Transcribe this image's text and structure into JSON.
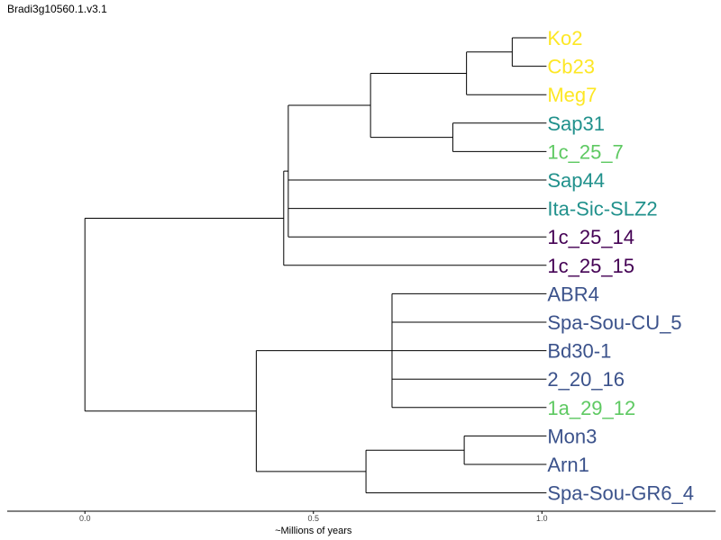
{
  "page": {
    "title": "Bradi3g10560.1.v3.1"
  },
  "chart_data": {
    "type": "dendrogram",
    "title": "Bradi3g10560.1.v3.1",
    "xlabel": "~Millions of years",
    "xlim": [
      -0.17,
      1.38
    ],
    "xticks": [
      0.0,
      0.5,
      1.0
    ],
    "xtick_labels": [
      "0.0",
      "0.5",
      "1.0"
    ],
    "grid": false,
    "colors": {
      "yellow": "#fde725",
      "teal": "#21918c",
      "light_green": "#5ec962",
      "dark_purple": "#440154",
      "slate_blue": "#3b528b"
    },
    "leaves": [
      {
        "name": "Ko2",
        "color": "#fde725"
      },
      {
        "name": "Cb23",
        "color": "#fde725"
      },
      {
        "name": "Meg7",
        "color": "#fde725"
      },
      {
        "name": "Sap31",
        "color": "#21918c"
      },
      {
        "name": "1c_25_7",
        "color": "#5ec962"
      },
      {
        "name": "Sap44",
        "color": "#21918c"
      },
      {
        "name": "Ita-Sic-SLZ2",
        "color": "#21918c"
      },
      {
        "name": "1c_25_14",
        "color": "#440154"
      },
      {
        "name": "1c_25_15",
        "color": "#440154"
      },
      {
        "name": "ABR4",
        "color": "#3b528b"
      },
      {
        "name": "Spa-Sou-CU_5",
        "color": "#3b528b"
      },
      {
        "name": "Bd30-1",
        "color": "#3b528b"
      },
      {
        "name": "2_20_16",
        "color": "#3b528b"
      },
      {
        "name": "1a_29_12",
        "color": "#5ec962"
      },
      {
        "name": "Mon3",
        "color": "#3b528b"
      },
      {
        "name": "Arn1",
        "color": "#3b528b"
      },
      {
        "name": "Spa-Sou-GR6_4",
        "color": "#3b528b"
      }
    ],
    "leaf_x": 1.01,
    "tree": {
      "x": 0.0,
      "children": [
        {
          "x": 0.435,
          "children": [
            {
              "x": 0.445,
              "children": [
                {
                  "x": 0.625,
                  "children": [
                    {
                      "x": 0.835,
                      "children": [
                        {
                          "x": 0.935,
                          "children": [
                            {
                              "leaf": 0
                            },
                            {
                              "leaf": 1
                            }
                          ]
                        },
                        {
                          "leaf": 2
                        }
                      ]
                    },
                    {
                      "x": 0.805,
                      "children": [
                        {
                          "leaf": 3
                        },
                        {
                          "leaf": 4
                        }
                      ]
                    }
                  ]
                },
                {
                  "leaf": 5
                },
                {
                  "leaf": 6
                },
                {
                  "leaf": 7
                }
              ]
            },
            {
              "leaf": 8
            }
          ]
        },
        {
          "x": 0.375,
          "children": [
            {
              "x": 0.672,
              "children": [
                {
                  "leaf": 9
                },
                {
                  "leaf": 10
                },
                {
                  "leaf": 11
                },
                {
                  "leaf": 12
                },
                {
                  "leaf": 13
                }
              ]
            },
            {
              "x": 0.615,
              "children": [
                {
                  "x": 0.83,
                  "children": [
                    {
                      "leaf": 14
                    },
                    {
                      "leaf": 15
                    }
                  ]
                },
                {
                  "leaf": 16
                }
              ]
            }
          ]
        }
      ]
    }
  }
}
